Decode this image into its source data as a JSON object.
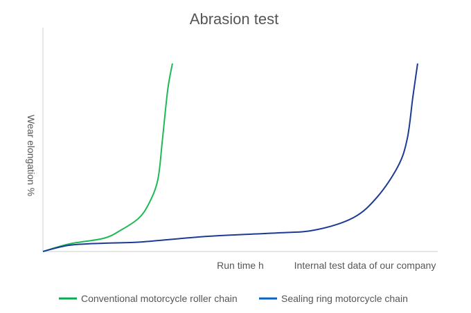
{
  "chart_data": {
    "type": "line",
    "title": "Abrasion test",
    "xlabel": "Run time h",
    "ylabel": "Wear elongation %",
    "annotation": "Internal test data of our company",
    "xlim": [
      0,
      100
    ],
    "ylim": [
      0,
      100
    ],
    "grid": false,
    "legend_position": "bottom",
    "series": [
      {
        "name": "Conventional motorcycle roller chain",
        "color": "#1db954",
        "legend_color": "#00b050",
        "x": [
          0,
          6.7,
          15.4,
          19.8,
          24.2,
          26.8,
          29.1,
          30.3,
          31.6,
          32.8
        ],
        "y": [
          0,
          3.4,
          5.9,
          9.6,
          14.8,
          21.3,
          32.1,
          50.6,
          72.2,
          84
        ]
      },
      {
        "name": "Sealing ring motorcycle chain",
        "color": "#1a3a94",
        "legend_color": "#0066cc",
        "x": [
          0,
          6.7,
          15.4,
          25.1,
          41.8,
          59.3,
          68.9,
          78.6,
          84.7,
          90.0,
          92.3,
          93.7,
          94.9
        ],
        "y": [
          0,
          2.8,
          3.7,
          4.3,
          6.8,
          8.3,
          9.6,
          15.1,
          24.4,
          38.3,
          50.6,
          69.1,
          84
        ]
      }
    ]
  }
}
